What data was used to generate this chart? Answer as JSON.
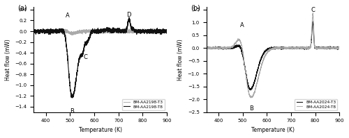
{
  "panel_a": {
    "title": "(a)",
    "xlabel": "Temperature (K)",
    "ylabel": "Heat flow (mW)",
    "xlim": [
      350,
      900
    ],
    "ylim": [
      -1.5,
      0.45
    ],
    "yticks": [
      0.4,
      0.2,
      0.0,
      -0.2,
      -0.4,
      -0.6,
      -0.8,
      -1.0,
      -1.2,
      -1.4
    ],
    "xticks": [
      400,
      500,
      600,
      700,
      800,
      900
    ],
    "legend": [
      "BM-AA2198-T3",
      "BM-AA2198-T8"
    ],
    "legend_colors": [
      "#aaaaaa",
      "#111111"
    ],
    "label_A": [
      490,
      0.2
    ],
    "label_B": [
      508,
      -1.38
    ],
    "label_C": [
      563,
      -0.38
    ],
    "label_D": [
      742,
      0.22
    ]
  },
  "panel_b": {
    "title": "(b)",
    "xlabel": "Temperature (K)",
    "ylabel": "Heat flow (mW)",
    "xlim": [
      350,
      900
    ],
    "ylim": [
      -2.5,
      1.6
    ],
    "yticks": [
      1.5,
      1.0,
      0.5,
      0.0,
      -0.5,
      -1.0,
      -1.5,
      -2.0,
      -2.5
    ],
    "xticks": [
      400,
      500,
      600,
      700,
      800,
      900
    ],
    "legend": [
      "BM-AA2024-T3",
      "BM-AA2024-T8"
    ],
    "legend_colors": [
      "#111111",
      "#aaaaaa"
    ],
    "label_A": [
      499,
      0.72
    ],
    "label_B": [
      535,
      -2.18
    ],
    "label_C": [
      790,
      1.32
    ]
  }
}
